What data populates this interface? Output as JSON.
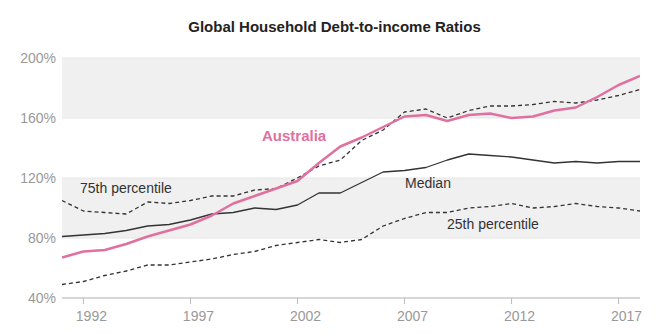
{
  "chart_data": {
    "type": "line",
    "title": "Global Household Debt-to-income Ratios",
    "x": [
      1991,
      1992,
      1993,
      1994,
      1995,
      1996,
      1997,
      1998,
      1999,
      2000,
      2001,
      2002,
      2003,
      2004,
      2005,
      2006,
      2007,
      2008,
      2009,
      2010,
      2011,
      2012,
      2013,
      2014,
      2015,
      2016,
      2017,
      2018
    ],
    "series": [
      {
        "name": "Australia",
        "color": "#e0709f",
        "line_style": "solid",
        "values": [
          67,
          71,
          72,
          76,
          81,
          85,
          89,
          95,
          103,
          108,
          113,
          118,
          130,
          141,
          147,
          154,
          161,
          162,
          158,
          162,
          163,
          160,
          161,
          165,
          167,
          174,
          182,
          188
        ]
      },
      {
        "name": "75th percentile",
        "color": "#333333",
        "line_style": "dashed",
        "values": [
          105,
          98,
          97,
          96,
          104,
          103,
          105,
          108,
          108,
          112,
          113,
          120,
          128,
          132,
          145,
          152,
          164,
          166,
          160,
          165,
          168,
          168,
          169,
          171,
          170,
          172,
          175,
          179
        ]
      },
      {
        "name": "Median",
        "color": "#333333",
        "line_style": "solid",
        "values": [
          81,
          82,
          83,
          85,
          88,
          89,
          92,
          96,
          97,
          100,
          99,
          102,
          110,
          110,
          117,
          124,
          125,
          127,
          132,
          136,
          135,
          134,
          132,
          130,
          131,
          130,
          131,
          131
        ]
      },
      {
        "name": "25th percentile",
        "color": "#333333",
        "line_style": "dashed",
        "values": [
          49,
          51,
          55,
          58,
          62,
          62,
          64,
          66,
          69,
          71,
          75,
          77,
          79,
          77,
          79,
          88,
          93,
          97,
          97,
          100,
          101,
          103,
          100,
          101,
          103,
          101,
          100,
          98
        ]
      }
    ],
    "xlim": [
      1991,
      2018
    ],
    "xticks": [
      1992,
      1997,
      2002,
      2007,
      2012,
      2017
    ],
    "ylim": [
      40,
      200
    ],
    "yticks": [
      {
        "value": 40,
        "label": "40%"
      },
      {
        "value": 80,
        "label": "80%"
      },
      {
        "value": 120,
        "label": "120%"
      },
      {
        "value": 160,
        "label": "160%"
      },
      {
        "value": 200,
        "label": "200%"
      }
    ],
    "grid": true
  }
}
